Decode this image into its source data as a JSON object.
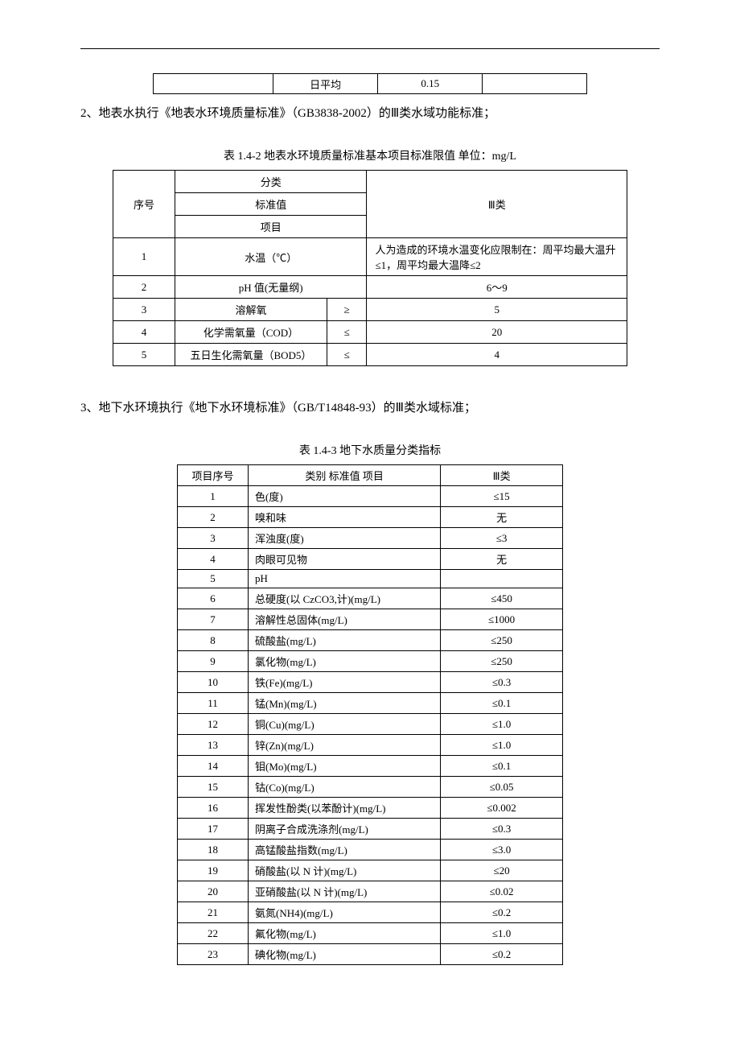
{
  "top_row": {
    "c1": "",
    "c2": "日平均",
    "c3": "0.15",
    "c4": ""
  },
  "para2": "2、地表水执行《地表水环境质量标准》（GB3838-2002）的Ⅲ类水域功能标准；",
  "caption142": "表 1.4-2 地表水环境质量标准基本项目标准限值  单位：mg/L",
  "t142": {
    "header": {
      "seq": "序号",
      "h1": "分类",
      "h2": "标准值",
      "h3": "项目",
      "col3": "Ⅲ类"
    },
    "rows": [
      {
        "n": "1",
        "item": "水温（℃）",
        "op": "",
        "val": "人为造成的环境水温变化应限制在：周平均最大温升≤1，周平均最大温降≤2",
        "span": true
      },
      {
        "n": "2",
        "item": "pH 值(无量纲)",
        "op": "",
        "val": "6～9",
        "span": true
      },
      {
        "n": "3",
        "item": "溶解氧",
        "op": "≥",
        "val": "5",
        "span": false
      },
      {
        "n": "4",
        "item": "化学需氧量（COD）",
        "op": "≤",
        "val": "20",
        "span": false
      },
      {
        "n": "5",
        "item": "五日生化需氧量（BOD5）",
        "op": "≤",
        "val": "4",
        "span": false
      }
    ]
  },
  "para3": "3、地下水环境执行《地下水环境标准》（GB/T14848-93）的Ⅲ类水域标准；",
  "caption143": "表 1.4-3 地下水质量分类指标",
  "t143": {
    "header": {
      "c1": "项目序号",
      "c2": "类别 标准值 项目",
      "c3": "Ⅲ类"
    },
    "rows": [
      {
        "n": "1",
        "item": "色(度)",
        "val": "≤15"
      },
      {
        "n": "2",
        "item": "嗅和味",
        "val": "无"
      },
      {
        "n": "3",
        "item": "浑浊度(度)",
        "val": "≤3"
      },
      {
        "n": "4",
        "item": "肉眼可见物",
        "val": "无"
      },
      {
        "n": "5",
        "item": "pH",
        "val": ""
      },
      {
        "n": "6",
        "item": "总硬度(以 CzCO3,计)(mg/L)",
        "val": "≤450"
      },
      {
        "n": "7",
        "item": "溶解性总固体(mg/L)",
        "val": "≤1000"
      },
      {
        "n": "8",
        "item": "硫酸盐(mg/L)",
        "val": "≤250"
      },
      {
        "n": "9",
        "item": "氯化物(mg/L)",
        "val": "≤250"
      },
      {
        "n": "10",
        "item": "铁(Fe)(mg/L)",
        "val": "≤0.3"
      },
      {
        "n": "11",
        "item": "锰(Mn)(mg/L)",
        "val": "≤0.1"
      },
      {
        "n": "12",
        "item": "铜(Cu)(mg/L)",
        "val": "≤1.0"
      },
      {
        "n": "13",
        "item": "锌(Zn)(mg/L)",
        "val": "≤1.0"
      },
      {
        "n": "14",
        "item": "钼(Mo)(mg/L)",
        "val": "≤0.1"
      },
      {
        "n": "15",
        "item": "钴(Co)(mg/L)",
        "val": "≤0.05"
      },
      {
        "n": "16",
        "item": "挥发性酚类(以苯酚计)(mg/L)",
        "val": "≤0.002"
      },
      {
        "n": "17",
        "item": "阴离子合成洗涤剂(mg/L)",
        "val": "≤0.3"
      },
      {
        "n": "18",
        "item": "高锰酸盐指数(mg/L)",
        "val": "≤3.0"
      },
      {
        "n": "19",
        "item": "硝酸盐(以 N 计)(mg/L)",
        "val": "≤20"
      },
      {
        "n": "20",
        "item": "亚硝酸盐(以 N 计)(mg/L)",
        "val": "≤0.02"
      },
      {
        "n": "21",
        "item": "氨氮(NH4)(mg/L)",
        "val": "≤0.2"
      },
      {
        "n": "22",
        "item": "氟化物(mg/L)",
        "val": "≤1.0"
      },
      {
        "n": "23",
        "item": "碘化物(mg/L)",
        "val": "≤0.2"
      }
    ]
  }
}
